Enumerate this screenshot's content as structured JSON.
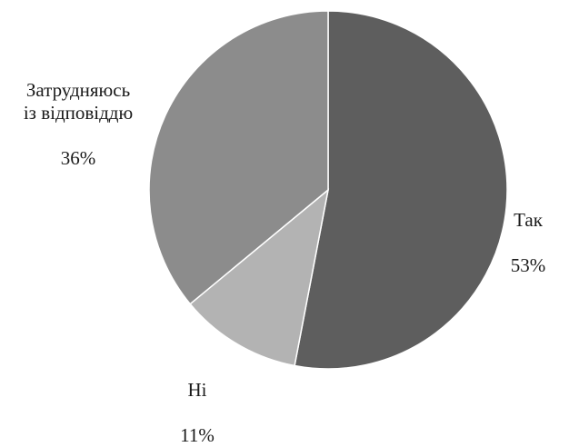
{
  "chart_data": {
    "type": "pie",
    "title": "",
    "slices": [
      {
        "label": "Так",
        "value": 53,
        "display": "53%",
        "color": "#5e5e5e"
      },
      {
        "label": "Ні",
        "value": 11,
        "display": "11%",
        "color": "#b3b3b3"
      },
      {
        "label": "Затрудняюсь\nіз відповіддю",
        "value": 36,
        "display": "36%",
        "color": "#8c8c8c"
      }
    ],
    "start": "12 o'clock",
    "direction": "clockwise",
    "legend": "none (labels beside slices)"
  }
}
